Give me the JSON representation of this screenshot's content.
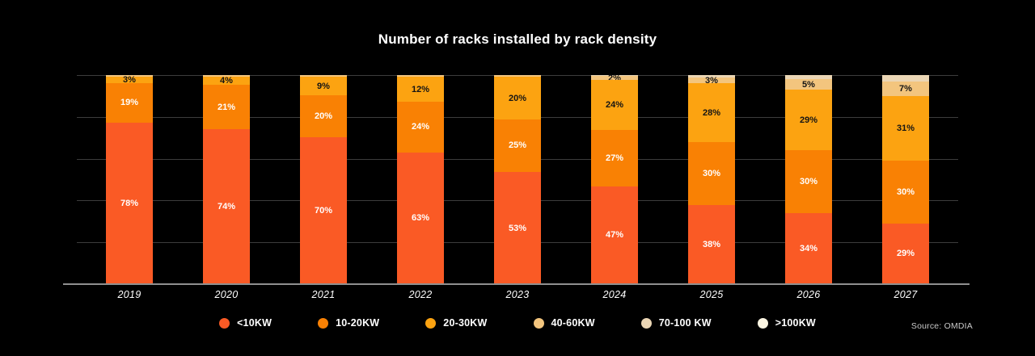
{
  "chart_data": {
    "type": "bar",
    "stacked": true,
    "title": "Number of racks installed by rack density",
    "categories": [
      "2019",
      "2020",
      "2021",
      "2022",
      "2023",
      "2024",
      "2025",
      "2026",
      "2027"
    ],
    "series": [
      {
        "name": "<10KW",
        "color": "#FA5A25",
        "label_color": "#ffffff",
        "values": [
          78,
          74,
          70,
          63,
          53,
          47,
          38,
          34,
          29
        ],
        "labels": [
          "78%",
          "74%",
          "70%",
          "63%",
          "53%",
          "47%",
          "38%",
          "34%",
          "29%"
        ]
      },
      {
        "name": "10-20KW",
        "color": "#F98104",
        "label_color": "#ffffff",
        "values": [
          19,
          21,
          20,
          24,
          25,
          27,
          30,
          30,
          30
        ],
        "labels": [
          "19%",
          "21%",
          "20%",
          "24%",
          "25%",
          "27%",
          "30%",
          "30%",
          "30%"
        ]
      },
      {
        "name": "20-30KW",
        "color": "#FCA311",
        "label_color": "#141414",
        "values": [
          3,
          4,
          9,
          12,
          20,
          24,
          28,
          29,
          31
        ],
        "labels": [
          "3%",
          "4%",
          "9%",
          "12%",
          "20%",
          "24%",
          "28%",
          "29%",
          "31%"
        ]
      },
      {
        "name": "40-60KW",
        "color": "#F3C57E",
        "label_color": "#141414",
        "values": [
          0.8,
          0.8,
          0.8,
          0.8,
          0.9,
          2,
          3,
          5,
          7
        ],
        "labels": [
          "",
          "",
          "",
          "",
          "",
          "2%",
          "3%",
          "5%",
          "7%"
        ]
      },
      {
        "name": "70-100 KW",
        "color": "#EBD6B5",
        "label_color": "#141414",
        "values": [
          0,
          0,
          0,
          0,
          0,
          0.5,
          1,
          2,
          3
        ],
        "labels": [
          "",
          "",
          "",
          "",
          "",
          "",
          "",
          "",
          ""
        ]
      },
      {
        "name": ">100KW",
        "color": "#FCF6E3",
        "label_color": "#141414",
        "values": [
          0,
          0,
          0,
          0,
          0,
          0,
          0,
          0,
          0
        ],
        "labels": [
          "",
          "",
          "",
          "",
          "",
          "",
          "",
          "",
          ""
        ]
      }
    ],
    "ylim": [
      0,
      100
    ],
    "grid_interval_pct": 20,
    "grid_on": true,
    "legend_position": "bottom"
  },
  "source": "Source: OMDIA"
}
